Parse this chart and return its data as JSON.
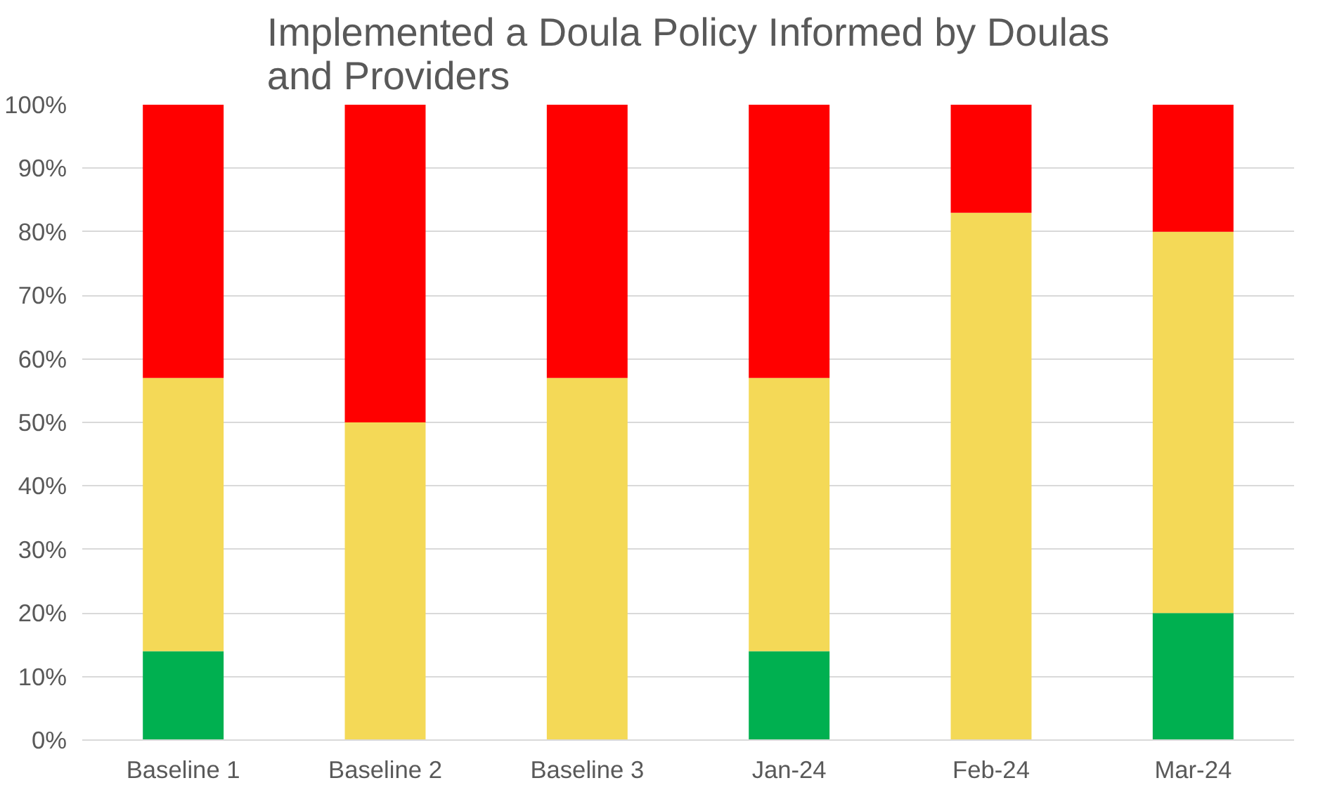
{
  "chart_data": {
    "type": "bar",
    "title": "Implemented a Doula Policy Informed by Doulas\nand Providers",
    "categories": [
      "Baseline 1",
      "Baseline 2",
      "Baseline 3",
      "Jan-24",
      "Feb-24",
      "Mar-24"
    ],
    "stacked": true,
    "series": [
      {
        "color": "#00b050",
        "values": [
          14,
          0,
          0,
          14,
          0,
          20
        ]
      },
      {
        "color": "#f4d957",
        "values": [
          43,
          50,
          57,
          43,
          83,
          60
        ]
      },
      {
        "color": "#ff0000",
        "values": [
          43,
          50,
          43,
          43,
          17,
          20
        ]
      }
    ],
    "ylim": [
      0,
      100
    ],
    "yticks": [
      {
        "value": 0,
        "label": "0%"
      },
      {
        "value": 10,
        "label": "10%"
      },
      {
        "value": 20,
        "label": "20%"
      },
      {
        "value": 30,
        "label": "30%"
      },
      {
        "value": 40,
        "label": "40%"
      },
      {
        "value": 50,
        "label": "50%"
      },
      {
        "value": 60,
        "label": "60%"
      },
      {
        "value": 70,
        "label": "70%"
      },
      {
        "value": 80,
        "label": "80%"
      },
      {
        "value": 90,
        "label": "90%"
      },
      {
        "value": 100,
        "label": "100%"
      }
    ],
    "grid": "y"
  }
}
